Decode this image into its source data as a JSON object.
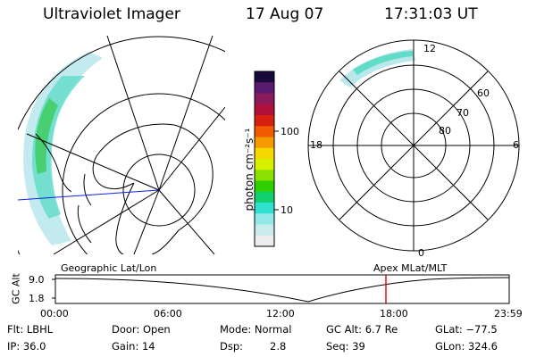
{
  "header": {
    "instrument": "Ultraviolet Imager",
    "date": "17 Aug 07",
    "time": "17:31:03 UT"
  },
  "colorbar": {
    "unit_label": "photon cm⁻²s⁻¹",
    "tick_labels": [
      "100",
      "10"
    ],
    "colors": [
      "#1a0a3a",
      "#5a1a6e",
      "#8a1a5a",
      "#b0103a",
      "#d82010",
      "#f05a00",
      "#f59a00",
      "#f5d800",
      "#d8f000",
      "#8ae000",
      "#30d000",
      "#10d070",
      "#30e0d0",
      "#90e8e8",
      "#c8ecec",
      "#ececec"
    ]
  },
  "polar_plot": {
    "top_label": "12",
    "bottom_label": "0",
    "left_label": "18",
    "right_label": "6",
    "lat_labels": [
      "80",
      "70",
      "60"
    ]
  },
  "timeline": {
    "left_title": "Geographic Lat/Lon",
    "right_title": "Apex MLat/MLT",
    "axis_label": "GC Alt",
    "y_ticks": [
      "9.0",
      "1.8"
    ],
    "x_ticks": [
      "00:00",
      "06:00",
      "12:00",
      "18:00",
      "23:59"
    ],
    "marker_time": "17:31",
    "marker_color": "#e01010"
  },
  "info": {
    "filter": "Flt: LBHL",
    "ip": "IP: 36.0",
    "door": "Door: Open",
    "gain": "Gain: 14",
    "mode": "Mode: Normal",
    "dsp_label": "Dsp:",
    "dsp_value": "2.8",
    "gc_alt": "GC Alt: 6.7 Re",
    "seq": "Seq: 39",
    "glat": "GLat: −77.5",
    "glon": "GLon: 324.6"
  }
}
